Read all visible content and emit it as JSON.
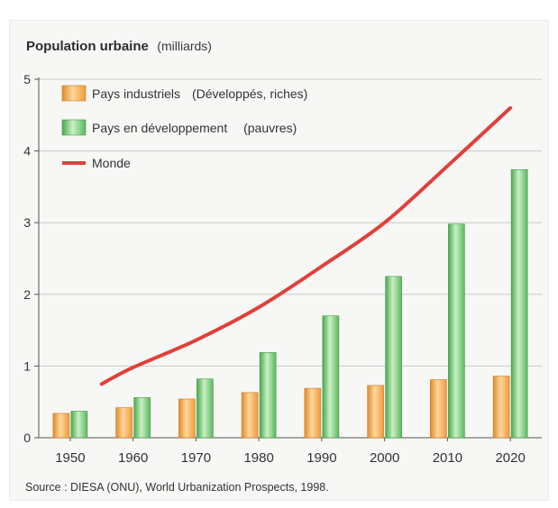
{
  "chart_data": {
    "type": "bar",
    "title": "Population urbaine",
    "title_unit": "(milliards)",
    "categories": [
      "1950",
      "1960",
      "1970",
      "1980",
      "1990",
      "2000",
      "2010",
      "2020"
    ],
    "series": [
      {
        "name": "Pays industriels",
        "note": "(Développés, riches)",
        "type": "bar",
        "color": "#f5a94a",
        "values": [
          0.34,
          0.42,
          0.54,
          0.63,
          0.69,
          0.73,
          0.81,
          0.86
        ]
      },
      {
        "name": "Pays en développement",
        "note": "(pauvres)",
        "type": "bar",
        "color": "#6cc46f",
        "values": [
          0.37,
          0.56,
          0.82,
          1.19,
          1.7,
          2.25,
          2.98,
          3.74
        ]
      },
      {
        "name": "Monde",
        "note": "",
        "type": "line",
        "color": "#e0403a",
        "values": [
          0.75,
          0.98,
          1.36,
          1.82,
          2.39,
          3.0,
          3.79,
          4.6
        ]
      }
    ],
    "y_ticks": [
      "0",
      "1",
      "2",
      "3",
      "4",
      "5"
    ],
    "ylim": [
      0,
      5
    ],
    "grid": true,
    "legend_position": "top-left",
    "source": "Source : DIESA (ONU), World Urbanization Prospects, 1998."
  }
}
